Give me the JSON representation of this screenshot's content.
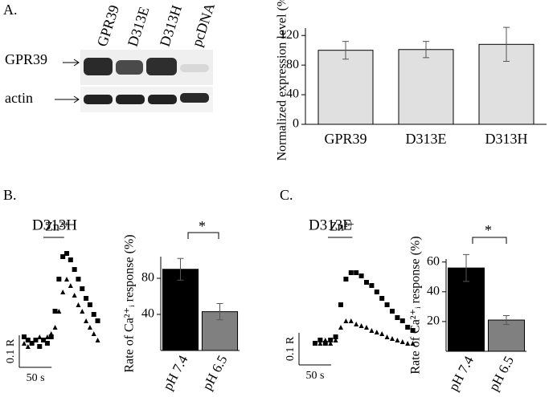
{
  "figure": {
    "panel_labels": [
      "A.",
      "B.",
      "C."
    ],
    "blot": {
      "lanes": [
        "GPR39",
        "D313E",
        "D313H",
        "pcDNA"
      ],
      "rows": [
        "GPR39",
        "actin"
      ]
    },
    "significance": [
      "*",
      "*"
    ]
  },
  "chart_data": [
    {
      "type": "bar",
      "y_label": "Normalized expression level (%)",
      "categories": [
        "GPR39",
        "D313E",
        "D313H"
      ],
      "values": [
        100,
        101,
        108
      ],
      "errors": [
        12,
        11,
        23
      ],
      "colors": [
        "#e0e0e0",
        "#e0e0e0",
        "#e0e0e0"
      ],
      "ylim": [
        0,
        130
      ],
      "yticks": [
        0,
        40,
        80,
        120
      ]
    },
    {
      "type": "scatter",
      "title": "D313H",
      "annotation": "Zn²⁺",
      "stimulus_range": [
        30,
        62
      ],
      "xlim": [
        0,
        127
      ],
      "ylim": [
        -0.03,
        0.32
      ],
      "scalebar_x": {
        "value": 50,
        "label": "50 s"
      },
      "scalebar_y": {
        "value": 0.1,
        "label": "0.1 R"
      },
      "x": [
        0,
        6,
        12,
        18,
        24,
        30,
        36,
        42,
        48,
        54,
        60,
        66,
        72,
        78,
        84,
        90,
        96,
        102,
        108,
        114
      ],
      "series": [
        {
          "marker": "square",
          "color": "#000000",
          "values": [
            0.02,
            0.01,
            0.0,
            0.01,
            -0.01,
            0.01,
            0.0,
            0.02,
            0.1,
            0.2,
            0.27,
            0.28,
            0.26,
            0.23,
            0.2,
            0.17,
            0.14,
            0.12,
            0.09,
            0.07
          ]
        },
        {
          "marker": "triangle",
          "color": "#000000",
          "values": [
            0.0,
            -0.01,
            0.0,
            0.01,
            0.02,
            0.01,
            0.02,
            0.03,
            0.05,
            0.1,
            0.16,
            0.2,
            0.18,
            0.15,
            0.12,
            0.1,
            0.07,
            0.05,
            0.03,
            0.01
          ]
        }
      ]
    },
    {
      "type": "bar",
      "y_label": "Rate of Ca²⁺ᵢ response (%)",
      "categories": [
        "pH 7.4",
        "pH 6.5"
      ],
      "values": [
        90,
        43
      ],
      "errors": [
        12,
        9
      ],
      "colors": [
        "#000000",
        "#808080"
      ],
      "ylim": [
        0,
        104
      ],
      "yticks": [
        40,
        80
      ]
    },
    {
      "type": "scatter",
      "title": "D313E",
      "annotation": "Zn²⁺",
      "stimulus_range": [
        20,
        58
      ],
      "xlim": [
        0,
        160
      ],
      "ylim": [
        -0.03,
        0.32
      ],
      "scalebar_x": {
        "value": 50,
        "label": "50 s"
      },
      "scalebar_y": {
        "value": 0.1,
        "label": "0.1 R"
      },
      "x": [
        0,
        8,
        16,
        24,
        32,
        40,
        48,
        56,
        64,
        72,
        80,
        88,
        96,
        104,
        112,
        120,
        128,
        136,
        144,
        152
      ],
      "series": [
        {
          "marker": "square",
          "color": "#000000",
          "values": [
            0.0,
            0.01,
            0.0,
            0.01,
            0.02,
            0.12,
            0.2,
            0.22,
            0.22,
            0.21,
            0.19,
            0.18,
            0.16,
            0.14,
            0.12,
            0.1,
            0.08,
            0.07,
            0.05,
            0.04
          ]
        },
        {
          "marker": "triangle",
          "color": "#000000",
          "values": [
            0.0,
            0.0,
            0.01,
            0.0,
            0.01,
            0.05,
            0.07,
            0.07,
            0.06,
            0.055,
            0.05,
            0.04,
            0.035,
            0.03,
            0.02,
            0.015,
            0.01,
            0.005,
            0.0,
            0.0
          ]
        }
      ]
    },
    {
      "type": "bar",
      "y_label": "Rate of Ca²⁺ᵢ response (%)",
      "categories": [
        "pH 7.4",
        "pH 6.5"
      ],
      "values": [
        56,
        21
      ],
      "errors": [
        9,
        3
      ],
      "colors": [
        "#000000",
        "#808080"
      ],
      "ylim": [
        0,
        62
      ],
      "yticks": [
        20,
        40,
        60
      ]
    }
  ]
}
